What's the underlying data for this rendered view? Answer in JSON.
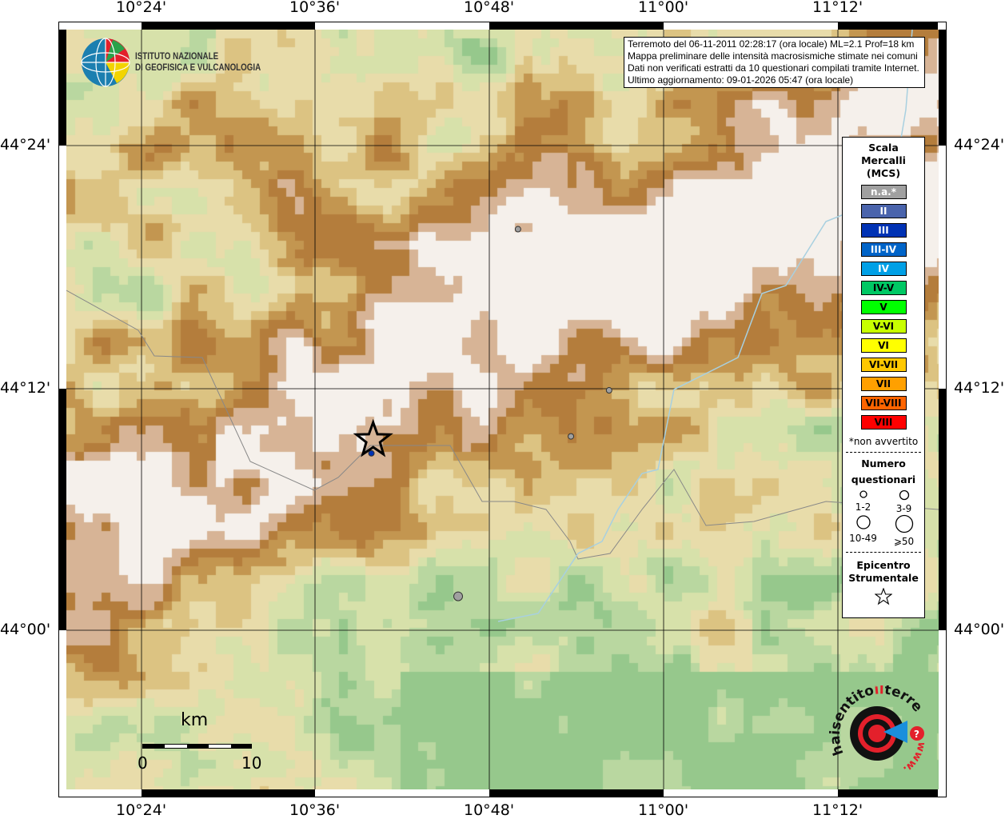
{
  "map": {
    "lon_ticks": [
      "10°24'",
      "10°36'",
      "10°48'",
      "11°00'",
      "11°12'"
    ],
    "lat_ticks": [
      "44°24'",
      "44°12'",
      "44°00'"
    ],
    "extent": {
      "lon": [
        10.343,
        11.248
      ],
      "lat": [
        43.93,
        44.502
      ]
    },
    "grid": true
  },
  "logo_ingv": {
    "line1": "ISTITUTO NAZIONALE",
    "line2": "DI GEOFISICA E VULCANOLOGIA"
  },
  "logo_hsit": {
    "text": "www.haisentitoilterremoto.it",
    "colors": {
      "red": "#e3202b",
      "blue": "#1a8fdc"
    }
  },
  "info": [
    "Terremoto del 06-11-2011 02:28:17 (ora locale) ML=2.1 Prof=18 km",
    "Mappa preliminare delle intensità macrosismiche stimate nei comuni",
    "Dati non verificati estratti da 10 questionari compilati tramite Internet.",
    "Ultimo aggiornamento: 09-01-2026 05:47 (ora locale)"
  ],
  "legend": {
    "title": [
      "Scala",
      "Mercalli",
      "(MCS)"
    ],
    "classes": [
      {
        "label": "n.a.*",
        "color": "#a0a0a0",
        "text": "#ffffff"
      },
      {
        "label": "II",
        "color": "#4a64ac",
        "text": "#ffffff"
      },
      {
        "label": "III",
        "color": "#0032b4",
        "text": "#ffffff"
      },
      {
        "label": "III-IV",
        "color": "#0064c8",
        "text": "#ffffff"
      },
      {
        "label": "IV",
        "color": "#00a0e6",
        "text": "#ffffff"
      },
      {
        "label": "IV-V",
        "color": "#00c864",
        "text": "#000000"
      },
      {
        "label": "V",
        "color": "#00ff00",
        "text": "#000000"
      },
      {
        "label": "V-VI",
        "color": "#c8ff00",
        "text": "#000000"
      },
      {
        "label": "VI",
        "color": "#ffff00",
        "text": "#000000"
      },
      {
        "label": "VI-VII",
        "color": "#ffc800",
        "text": "#000000"
      },
      {
        "label": "VII",
        "color": "#ffa000",
        "text": "#000000"
      },
      {
        "label": "VII-VIII",
        "color": "#ff6400",
        "text": "#000000"
      },
      {
        "label": "VIII",
        "color": "#ff0000",
        "text": "#000000"
      }
    ],
    "note": "*non avvertito",
    "count_title": [
      "Numero",
      "questionari"
    ],
    "count_classes": [
      "1-2",
      "3-9",
      "10-49",
      "⩾50"
    ],
    "epicenter_title": [
      "Epicentro",
      "Strumentale"
    ]
  },
  "scale_bar": {
    "unit": "km",
    "labels": [
      "0",
      "10"
    ]
  },
  "epicenter": {
    "lon": 10.667,
    "lat": 44.157
  },
  "points": [
    {
      "lon": 10.834,
      "lat": 44.331,
      "intensity": "n.a.*",
      "count": "1-2"
    },
    {
      "lon": 10.939,
      "lat": 44.198,
      "intensity": "n.a.*",
      "count": "1-2"
    },
    {
      "lon": 10.895,
      "lat": 44.16,
      "intensity": "n.a.*",
      "count": "1-2"
    },
    {
      "lon": 10.765,
      "lat": 44.028,
      "intensity": "n.a.*",
      "count": "3-9"
    },
    {
      "lon": 10.665,
      "lat": 44.146,
      "intensity": "III",
      "count": "1-2"
    }
  ]
}
